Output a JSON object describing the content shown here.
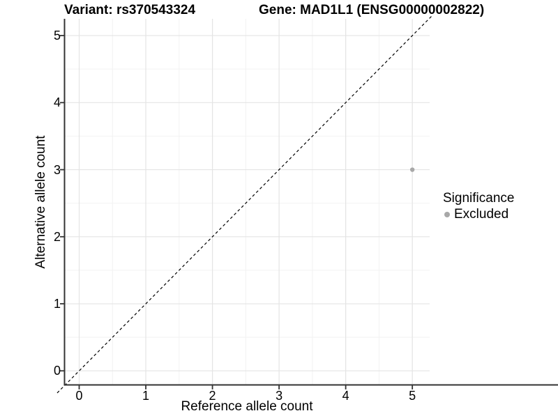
{
  "chart_data": {
    "type": "scatter",
    "title_left": "Variant: rs370543324",
    "title_right": "Gene: MAD1L1 (ENSG00000002822)",
    "xlabel": "Reference allele count",
    "ylabel": "Alternative allele count",
    "x_ticks": [
      0,
      1,
      2,
      3,
      4,
      5
    ],
    "y_ticks": [
      0,
      1,
      2,
      3,
      4,
      5
    ],
    "x_minor_ticks": [
      0.5,
      1.5,
      2.5,
      3.5,
      4.5
    ],
    "y_minor_ticks": [
      0.5,
      1.5,
      2.5,
      3.5,
      4.5
    ],
    "xlim": [
      -0.22,
      5.26
    ],
    "ylim": [
      -0.21,
      5.25
    ],
    "grid": "major and minor, light gray on white panel",
    "points": [
      {
        "x": 5,
        "y": 3,
        "series": "Excluded"
      }
    ],
    "reference_line": {
      "kind": "identity y=x",
      "style": "dashed",
      "color": "#000000"
    },
    "legend": {
      "position": "right",
      "title": "Significance",
      "items": [
        {
          "label": "Excluded",
          "color": "#a8a8a8"
        }
      ]
    },
    "colors": {
      "background": "#ffffff",
      "grid_major": "#e4e4e4",
      "grid_minor": "#f2f2f2",
      "axis_line": "#333333",
      "tick_mark": "#333333",
      "point": "#a8a8a8",
      "text": "#000000"
    },
    "point_radius_px": 3.2,
    "legend_dot_radius_px": 4
  }
}
